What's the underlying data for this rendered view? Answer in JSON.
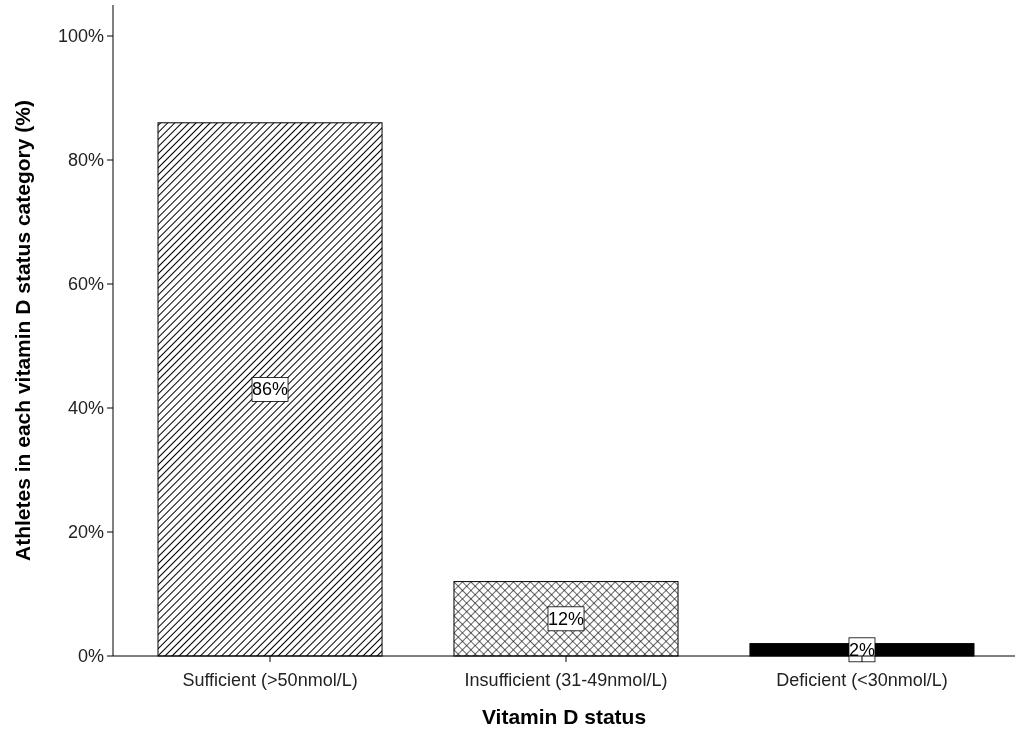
{
  "chart_data": {
    "type": "bar",
    "xlabel": "Vitamin D status",
    "ylabel": "Athletes in each vitamin D status category (%)",
    "categories": [
      "Sufficient (>50nmol/L)",
      "Insufficient (31-49nmol/L)",
      "Deficient (<30nmol/L)"
    ],
    "values": [
      86,
      12,
      2
    ],
    "colors": [
      "#000000",
      "#000000",
      "#000000"
    ],
    "value_labels": [
      "86%",
      "12%",
      "2%"
    ],
    "ylim": [
      0,
      105
    ],
    "yticks": [
      {
        "value": 0,
        "label": "0%"
      },
      {
        "value": 20,
        "label": "20%"
      },
      {
        "value": 40,
        "label": "40%"
      },
      {
        "value": 60,
        "label": "60%"
      },
      {
        "value": 80,
        "label": "80%"
      },
      {
        "value": 100,
        "label": "100%"
      }
    ],
    "grid": false
  }
}
